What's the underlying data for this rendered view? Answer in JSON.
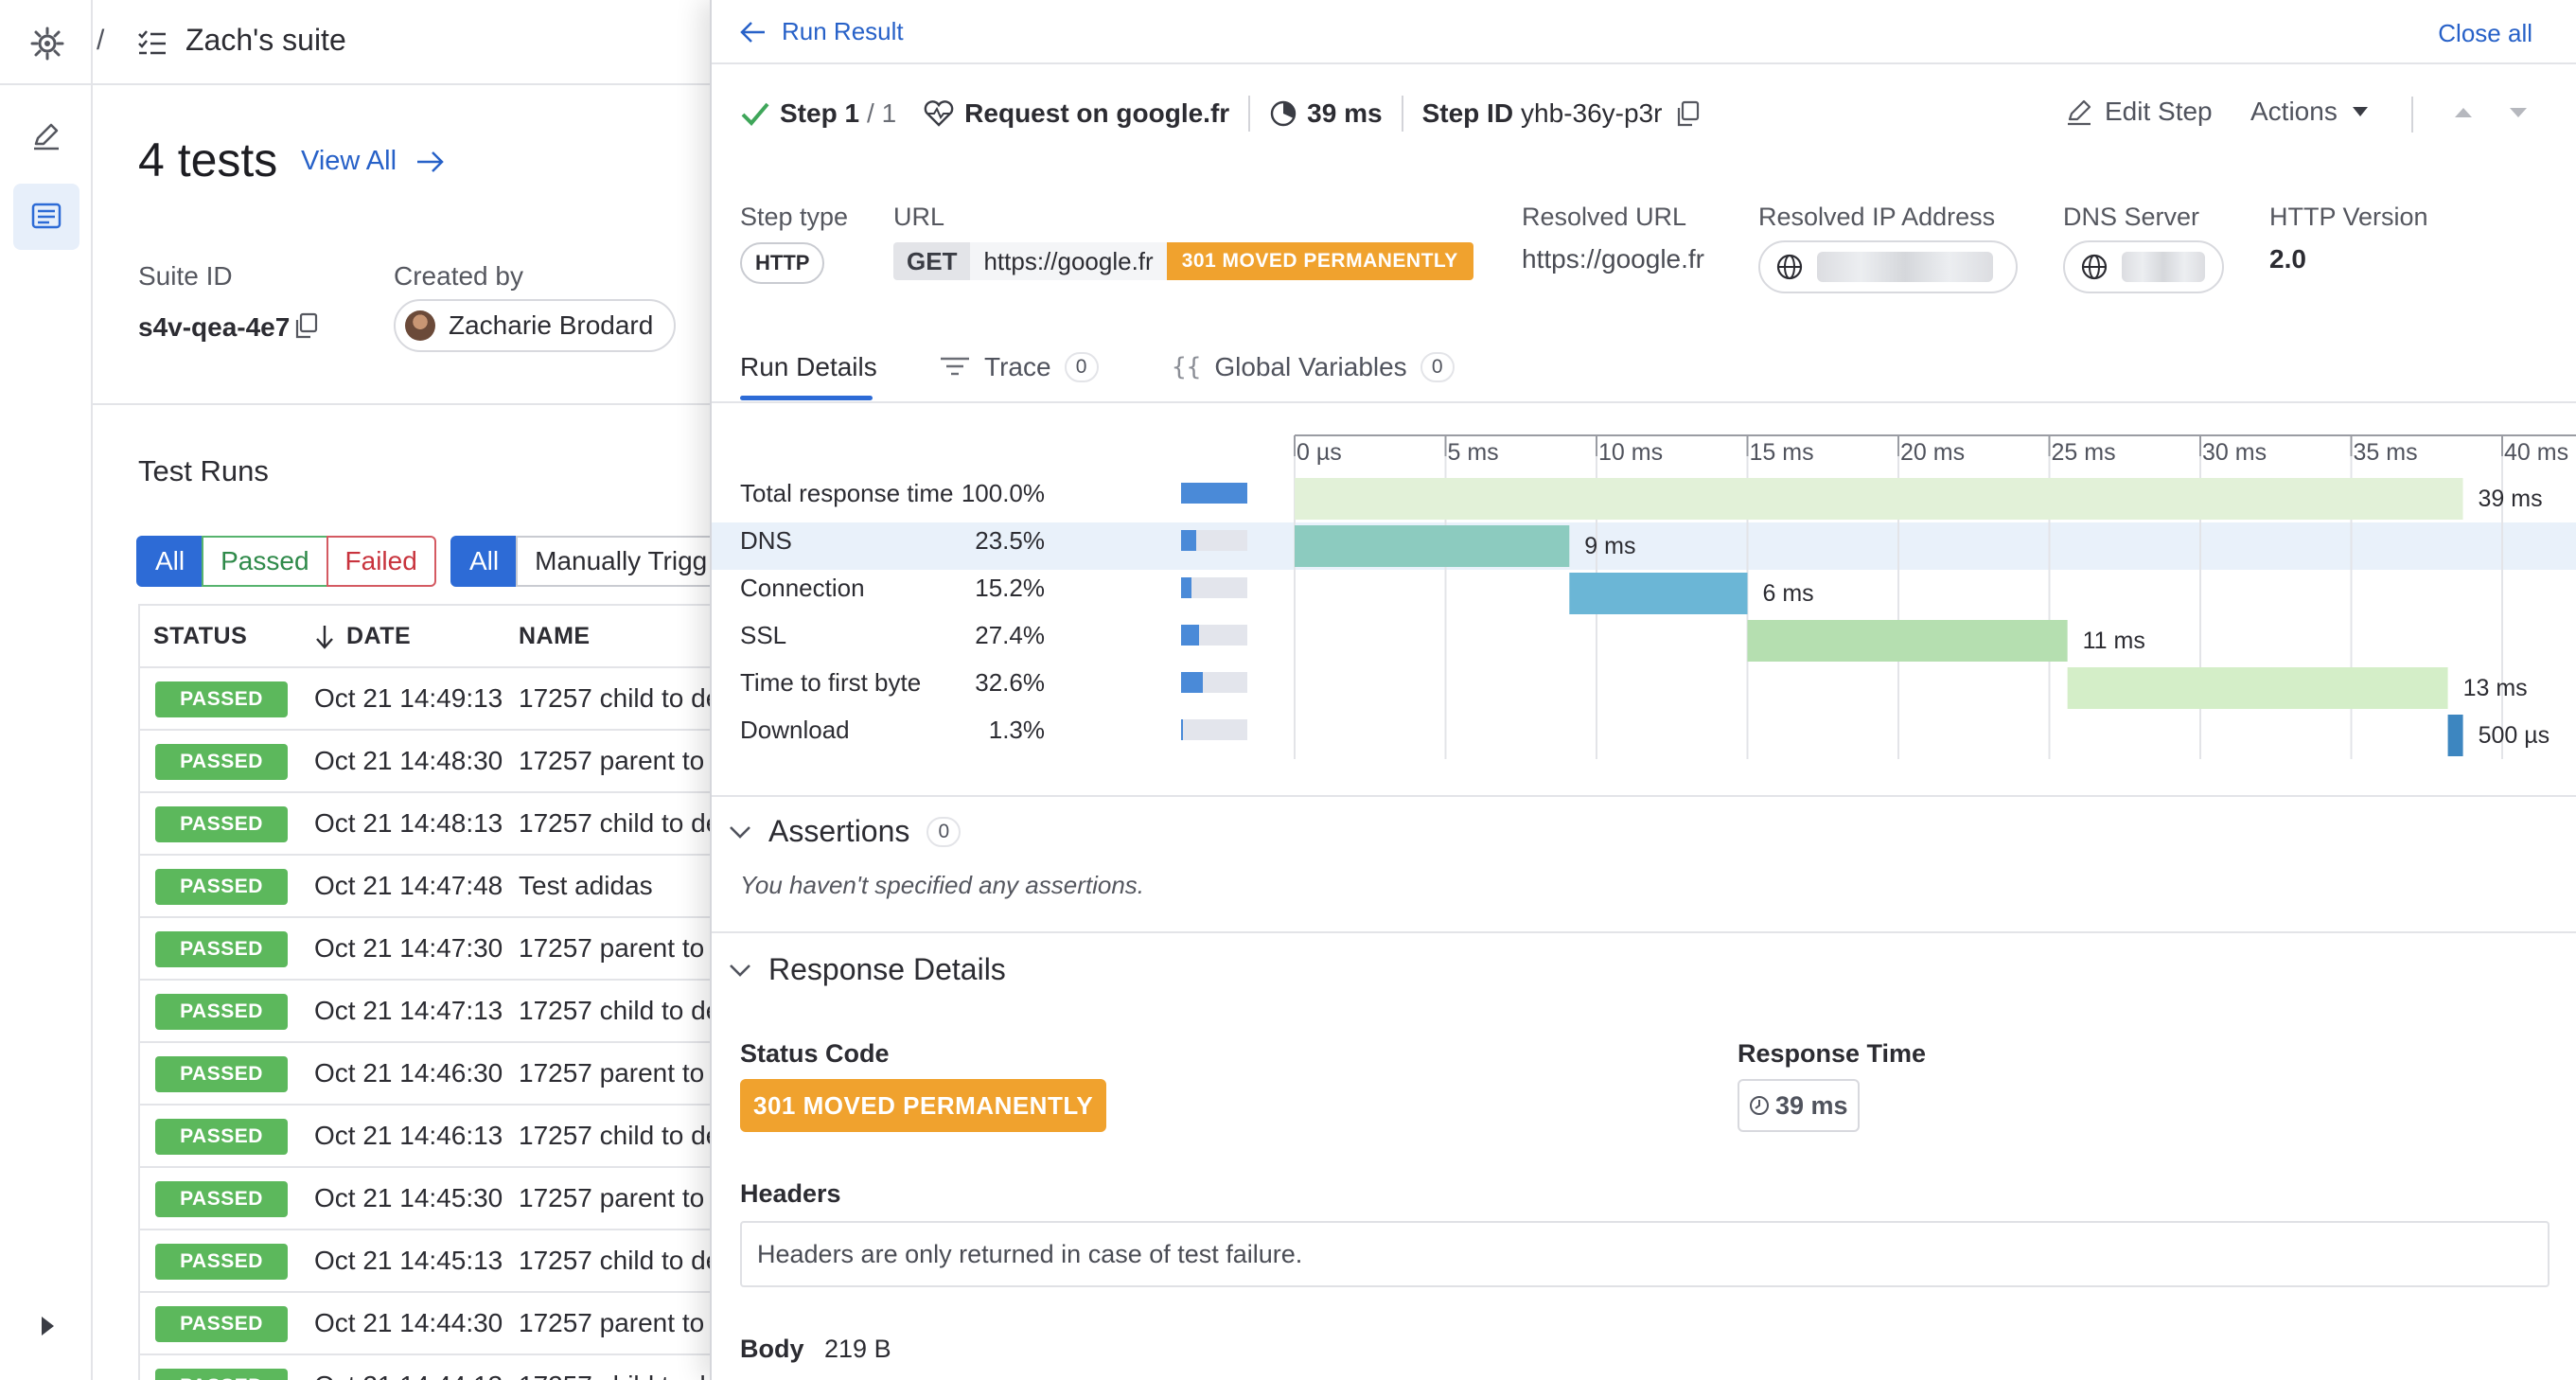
{
  "suite": {
    "title": "Zach's suite",
    "tests_count": "4 tests",
    "view_all": "View All",
    "suite_id_label": "Suite ID",
    "suite_id": "s4v-qea-4e7",
    "created_by_label": "Created by",
    "created_by": "Zacharie Brodard",
    "runs_title": "Test Runs",
    "status_filters": [
      "All",
      "Passed",
      "Failed"
    ],
    "trigger_filters": [
      "All",
      "Manually Trigg"
    ],
    "columns": [
      "STATUS",
      "DATE",
      "NAME"
    ],
    "rows": [
      {
        "status": "PASSED",
        "date": "Oct 21 14:49:13",
        "name": "17257 child to de"
      },
      {
        "status": "PASSED",
        "date": "Oct 21 14:48:30",
        "name": "17257 parent to"
      },
      {
        "status": "PASSED",
        "date": "Oct 21 14:48:13",
        "name": "17257 child to de"
      },
      {
        "status": "PASSED",
        "date": "Oct 21 14:47:48",
        "name": "Test adidas"
      },
      {
        "status": "PASSED",
        "date": "Oct 21 14:47:30",
        "name": "17257 parent to"
      },
      {
        "status": "PASSED",
        "date": "Oct 21 14:47:13",
        "name": "17257 child to de"
      },
      {
        "status": "PASSED",
        "date": "Oct 21 14:46:30",
        "name": "17257 parent to"
      },
      {
        "status": "PASSED",
        "date": "Oct 21 14:46:13",
        "name": "17257 child to de"
      },
      {
        "status": "PASSED",
        "date": "Oct 21 14:45:30",
        "name": "17257 parent to"
      },
      {
        "status": "PASSED",
        "date": "Oct 21 14:45:13",
        "name": "17257 child to de"
      },
      {
        "status": "PASSED",
        "date": "Oct 21 14:44:30",
        "name": "17257 parent to"
      },
      {
        "status": "PASSED",
        "date": "Oct 21 14:44:13",
        "name": "17257 child to de"
      }
    ]
  },
  "drawer": {
    "back_label": "Run Result",
    "close_all": "Close all",
    "step_label": "Step 1",
    "step_total": "/ 1",
    "request_name": "Request on google.fr",
    "duration": "39 ms",
    "step_id_label": "Step ID",
    "step_id": "yhb-36y-p3r",
    "edit_step": "Edit Step",
    "actions": "Actions",
    "fields": {
      "step_type_label": "Step type",
      "step_type": "HTTP",
      "url_label": "URL",
      "method": "GET",
      "url": "https://google.fr",
      "status_short": "301 MOVED PERMANENTLY",
      "resolved_url_label": "Resolved URL",
      "resolved_url": "https://google.fr",
      "resolved_ip_label": "Resolved IP Address",
      "dns_server_label": "DNS Server",
      "http_version_label": "HTTP Version",
      "http_version": "2.0"
    },
    "tabs": [
      {
        "label": "Run Details",
        "count": ""
      },
      {
        "label": "Trace",
        "count": "0"
      },
      {
        "label": "Global Variables",
        "count": "0"
      }
    ],
    "timings": [
      {
        "label": "Total response time",
        "pct": "100.0%",
        "fraction": 1.0
      },
      {
        "label": "DNS",
        "pct": "23.5%",
        "fraction": 0.235
      },
      {
        "label": "Connection",
        "pct": "15.2%",
        "fraction": 0.152
      },
      {
        "label": "SSL",
        "pct": "27.4%",
        "fraction": 0.274
      },
      {
        "label": "Time to first byte",
        "pct": "32.6%",
        "fraction": 0.326
      },
      {
        "label": "Download",
        "pct": "1.3%",
        "fraction": 0.013
      }
    ],
    "assertions_title": "Assertions",
    "assertions_count": "0",
    "no_assertions": "You haven't specified any assertions.",
    "response_title": "Response Details",
    "status_code_label": "Status Code",
    "status_code": "301 MOVED PERMANENTLY",
    "response_time_label": "Response Time",
    "response_time": "39 ms",
    "headers_label": "Headers",
    "headers_note": "Headers are only returned in case of test failure.",
    "body_label": "Body",
    "body_size": "219 B"
  },
  "colors": {
    "accent": "#2d6bd6",
    "link": "#2761c8",
    "warning": "#f0a22e",
    "success": "#5cb85c"
  },
  "chart_data": {
    "type": "waterfall",
    "x_unit": "ms",
    "ticks": [
      "0 µs",
      "5 ms",
      "10 ms",
      "15 ms",
      "20 ms",
      "25 ms",
      "30 ms",
      "35 ms",
      "40 ms"
    ],
    "tick_values": [
      0,
      5,
      10,
      15,
      20,
      25,
      30,
      35,
      40
    ],
    "xlim": [
      0,
      43
    ],
    "series": [
      {
        "name": "Total response time",
        "start": 0,
        "end": 38.7,
        "label": "39 ms",
        "color": "#e2f1d8"
      },
      {
        "name": "DNS",
        "start": 0,
        "end": 9.1,
        "label": "9 ms",
        "color": "#8ccbbf"
      },
      {
        "name": "Connection",
        "start": 9.1,
        "end": 15.0,
        "label": "6 ms",
        "color": "#6bb6d6"
      },
      {
        "name": "SSL",
        "start": 15.0,
        "end": 25.6,
        "label": "11 ms",
        "color": "#b5dfb0"
      },
      {
        "name": "Time to first byte",
        "start": 25.6,
        "end": 38.2,
        "label": "13 ms",
        "color": "#d4eec8"
      },
      {
        "name": "Download",
        "start": 38.2,
        "end": 38.7,
        "label": "500 µs",
        "color": "#3d86c0"
      }
    ]
  }
}
